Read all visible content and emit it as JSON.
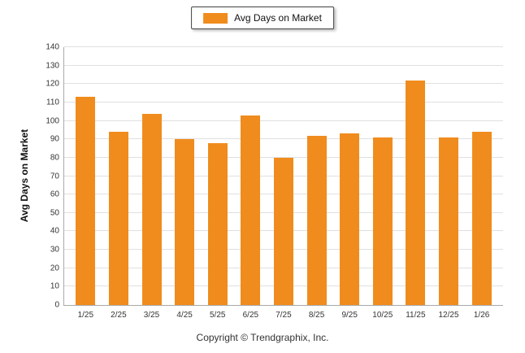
{
  "legend": {
    "label": "Avg Days on Market"
  },
  "footer": {
    "copyright": "Copyright © Trendgraphix, Inc."
  },
  "chart_data": {
    "type": "bar",
    "title": "",
    "categories": [
      "1/25",
      "2/25",
      "3/25",
      "4/25",
      "5/25",
      "6/25",
      "7/25",
      "8/25",
      "9/25",
      "10/25",
      "11/25",
      "12/25",
      "1/26"
    ],
    "values": [
      113,
      94,
      104,
      90,
      88,
      103,
      80,
      92,
      93,
      91,
      122,
      91,
      94
    ],
    "series": [
      {
        "name": "Avg Days on Market",
        "values": [
          113,
          94,
          104,
          90,
          88,
          103,
          80,
          92,
          93,
          91,
          122,
          91,
          94
        ]
      }
    ],
    "xlabel": "",
    "ylabel": "Avg Days on Market",
    "ylim": [
      0,
      140
    ],
    "ytick_step": 10,
    "grid": true,
    "legend_position": "top",
    "bar_color": "#F08C1E"
  }
}
